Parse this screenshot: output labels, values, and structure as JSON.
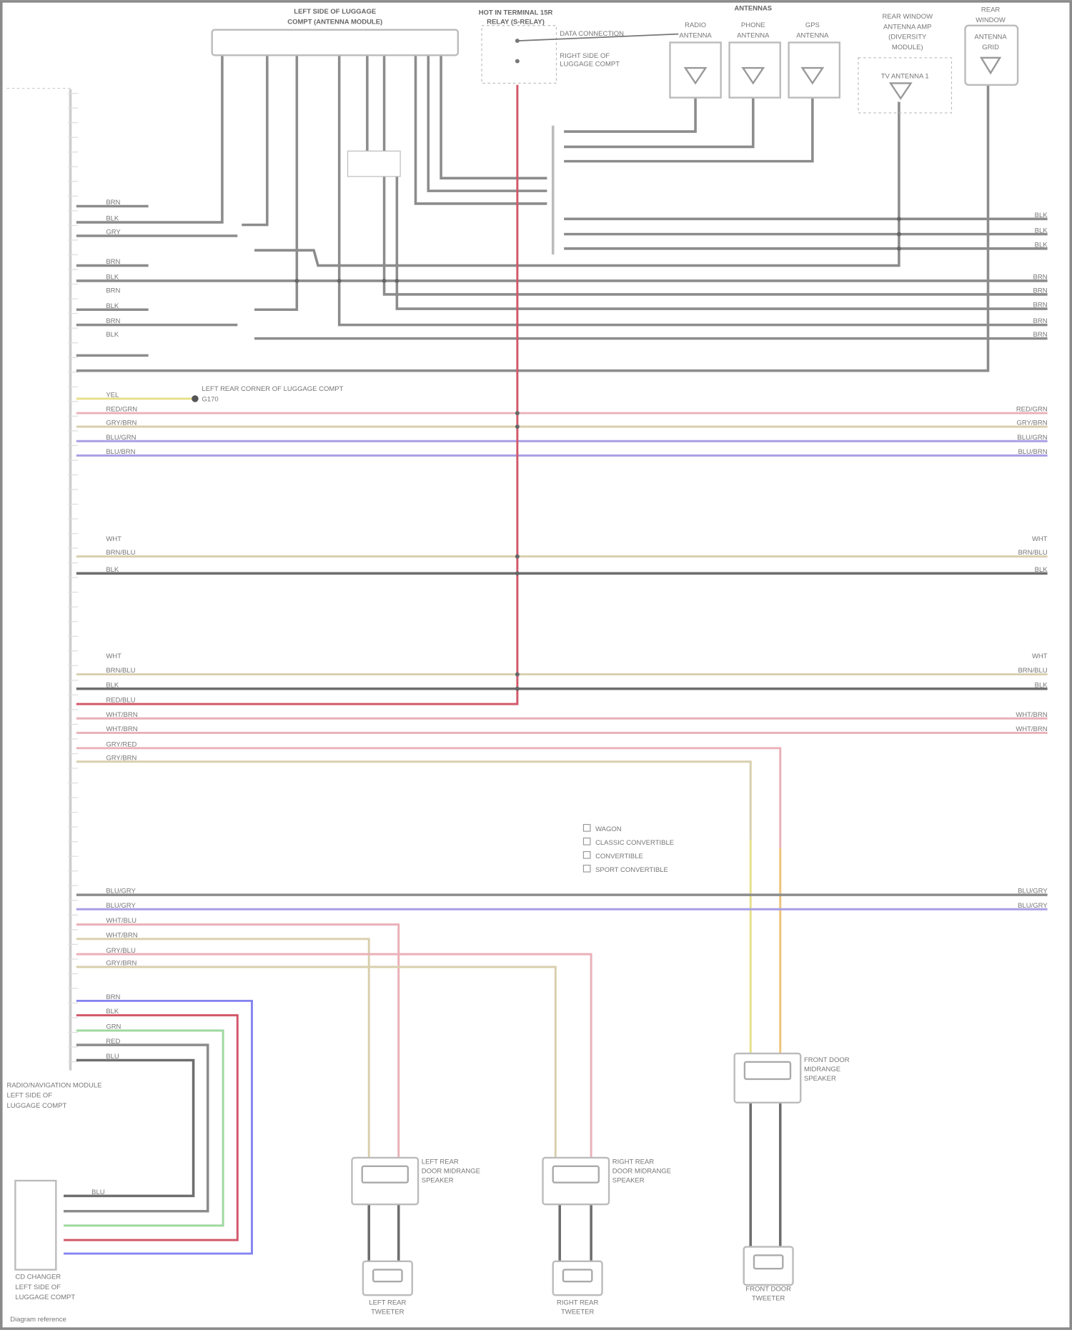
{
  "diagram": {
    "components": {
      "top_connector": [
        "LEFT SIDE OF LUGGAGE",
        "COMPT (ANTENNA MODULE)"
      ],
      "relay": [
        "HOT IN TERMINAL 15R",
        "RELAY (S-RELAY)"
      ],
      "relay_note": [
        "DATA CONNECTION",
        "RIGHT SIDE OF",
        "LUGGAGE COMPT"
      ],
      "antennas_group": "ANTENNAS",
      "antenna_1": [
        "RADIO",
        "ANTENNA"
      ],
      "antenna_2": [
        "PHONE",
        "ANTENNA"
      ],
      "antenna_3": [
        "GPS",
        "ANTENNA"
      ],
      "amplifier": [
        "REAR WINDOW",
        "ANTENNA AMP",
        "(DIVERSITY",
        "MODULE)"
      ],
      "amplifier_inner": "TV ANTENNA 1",
      "rear_antenna": [
        "REAR",
        "WINDOW",
        "ANTENNA",
        "GRID"
      ],
      "ground_note": "LEFT REAR CORNER OF LUGGAGE COMPT",
      "ground_id": "G170",
      "left_module_label": [
        "RADIO/NAVIGATION MODULE",
        "LEFT SIDE OF",
        "LUGGAGE COMPT"
      ],
      "cd_changer_label": [
        "CD CHANGER",
        "LEFT SIDE OF",
        "LUGGAGE COMPT"
      ],
      "left_rear_speaker": [
        "LEFT REAR",
        "DOOR MIDRANGE",
        "SPEAKER"
      ],
      "right_rear_speaker": [
        "RIGHT REAR",
        "DOOR MIDRANGE",
        "SPEAKER"
      ],
      "front_speaker": [
        "FRONT DOOR",
        "MIDRANGE",
        "SPEAKER"
      ],
      "left_tweeter": [
        "LEFT REAR",
        "TWEETER"
      ],
      "right_tweeter": [
        "RIGHT REAR",
        "TWEETER"
      ],
      "front_tweeter": [
        "FRONT DOOR",
        "TWEETER"
      ],
      "footer": "Diagram reference"
    },
    "legend": [
      "WAGON",
      "CLASSIC CONVERTIBLE",
      "CONVERTIBLE",
      "SPORT CONVERTIBLE"
    ],
    "wire_labels_left": [
      "BRN",
      "BLK",
      "GRY",
      "BRN",
      "BLK",
      "BRN",
      "BLK",
      "BRN",
      "BLK",
      "YEL",
      "RED/GRN",
      "GRY/BRN",
      "BLU/GRN",
      "BLU/BRN",
      "WHT",
      "BRN/BLU",
      "BLK",
      "WHT",
      "BRN/BLU",
      "BLK",
      "RED/BLU",
      "WHT/BRN",
      "WHT/BRN",
      "GRY/RED",
      "GRY/BRN",
      "BLU/GRY",
      "BLU/GRY",
      "WHT/BLU",
      "WHT/BRN",
      "GRY/BLU",
      "GRY/BRN"
    ],
    "wire_labels_right": [
      "BLK",
      "BLK",
      "BLK",
      "BRN",
      "BRN",
      "BRN",
      "BRN",
      "BRN",
      "RED/GRN",
      "GRY/BRN",
      "BLU/GRN",
      "BLU/BRN",
      "WHT",
      "BRN/BLU",
      "BLK",
      "WHT",
      "BRN/BLU",
      "BLK",
      "WHT/BRN",
      "WHT/BRN",
      "BLU/GRY",
      "BLU/GRY"
    ],
    "cd_wire_labels": [
      "BRN",
      "BLK",
      "GRN",
      "RED",
      "BLU",
      "BLU"
    ],
    "colors": {
      "frame": "#8a8a8a",
      "gray": "#8c8c8c",
      "dark": "#6e6e6e",
      "pink": "#eab0b8",
      "red": "#d2586a",
      "tan": "#d9cfae",
      "purple": "#a89ee6",
      "yellow": "#e6e08a",
      "orange": "#eec27a",
      "green": "#9fd89f",
      "blue": "#8585f0"
    }
  }
}
